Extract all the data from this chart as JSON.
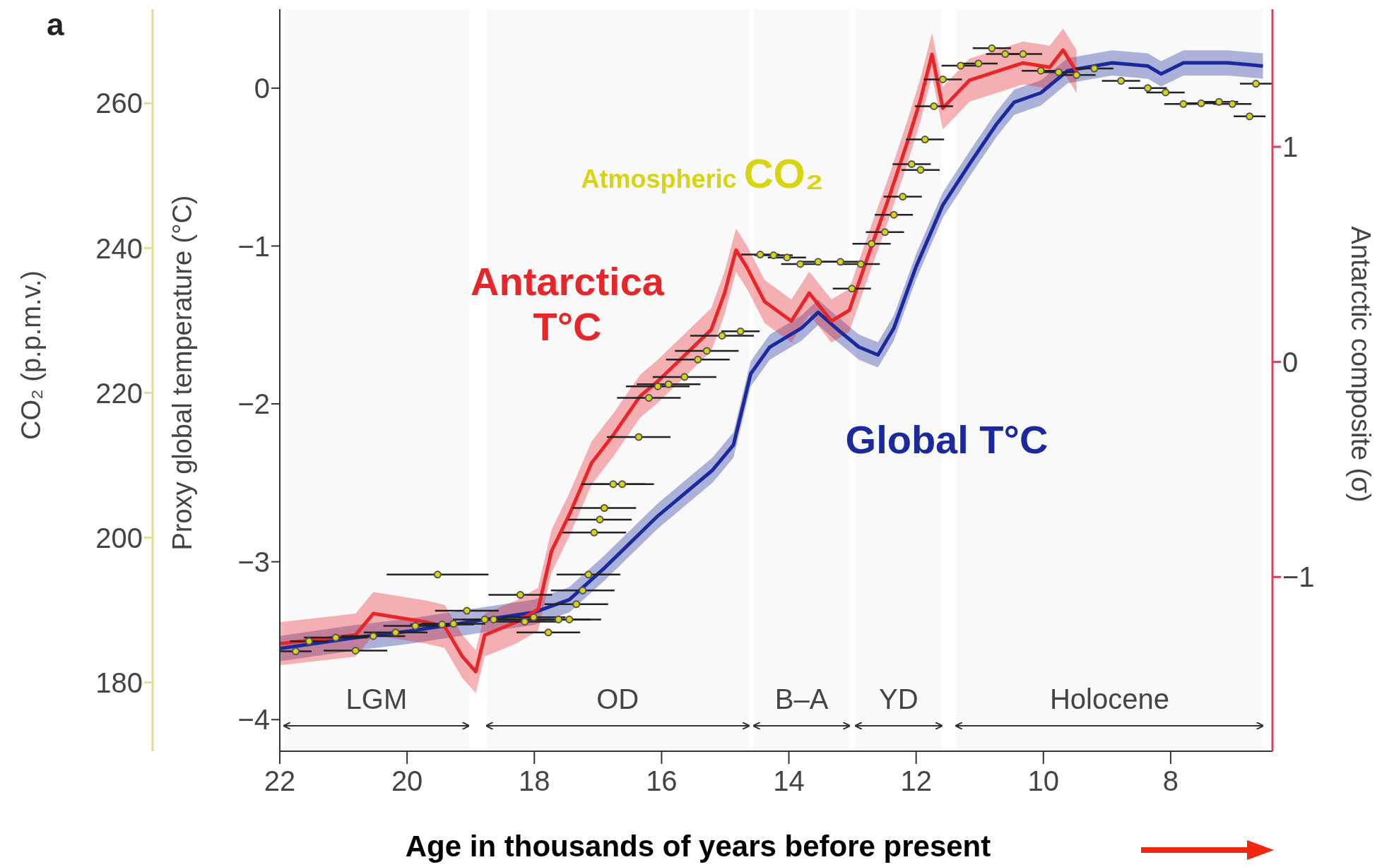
{
  "chart_data": {
    "type": "line",
    "xlabel": "Age in thousands of years before present",
    "ylabel": "Proxy global temperature (°C)",
    "y2label": "Antarctic composite (σ)",
    "y3label": "CO₂ (p.p.m.v.)",
    "xlim": [
      22,
      6.4
    ],
    "xticks": [
      22,
      20,
      18,
      16,
      14,
      12,
      10,
      8
    ],
    "ylim": [
      -4.2,
      0.5
    ],
    "yticks": [
      {
        "value": -4,
        "label": "−4"
      },
      {
        "value": -3,
        "label": "−3"
      },
      {
        "value": -2,
        "label": "−2"
      },
      {
        "value": -1,
        "label": "−1"
      },
      0
    ],
    "y2lim": [
      -1.81,
      1.64
    ],
    "y2ticks": [
      {
        "value": -1,
        "label": "−1"
      },
      0,
      1
    ],
    "y3lim": [
      170.5,
      273
    ],
    "y3ticks": [
      180,
      200,
      220,
      240,
      260
    ],
    "annotations": [
      "a"
    ],
    "bands": [
      {
        "axis": "x",
        "from": 21.93,
        "to": 19.03,
        "label": "LGM"
      },
      {
        "axis": "x",
        "from": 18.75,
        "to": 14.63,
        "label": "OD"
      },
      {
        "axis": "x",
        "from": 14.55,
        "to": 13.05,
        "label": "B–A"
      },
      {
        "axis": "x",
        "from": 12.95,
        "to": 11.6,
        "label": "YD"
      },
      {
        "axis": "x",
        "from": 11.37,
        "to": 6.55,
        "label": "Holocene"
      }
    ],
    "series": [
      {
        "name": "Global T°C",
        "color": "#1a2a9e",
        "marker": "none",
        "x": [
          22,
          20.8,
          19.97,
          19.0,
          18.0,
          17.45,
          16.9,
          16.06,
          15.2,
          14.87,
          14.6,
          14.3,
          13.8,
          13.54,
          13.26,
          12.9,
          12.6,
          12.35,
          12.0,
          11.58,
          11.16,
          10.74,
          10.46,
          10.04,
          9.62,
          8.92,
          8.36,
          8.15,
          7.8,
          7.1,
          6.55
        ],
        "values": [
          -3.55,
          -3.48,
          -3.44,
          -3.38,
          -3.32,
          -3.24,
          -3.04,
          -2.71,
          -2.42,
          -2.26,
          -1.81,
          -1.64,
          -1.52,
          -1.42,
          -1.52,
          -1.64,
          -1.69,
          -1.52,
          -1.13,
          -0.74,
          -0.48,
          -0.23,
          -0.09,
          -0.03,
          0.11,
          0.16,
          0.14,
          0.09,
          0.16,
          0.16,
          0.14
        ],
        "lower": [
          -3.63,
          -3.56,
          -3.52,
          -3.46,
          -3.4,
          -3.32,
          -3.12,
          -2.79,
          -2.5,
          -2.34,
          -1.89,
          -1.72,
          -1.6,
          -1.5,
          -1.6,
          -1.72,
          -1.77,
          -1.6,
          -1.21,
          -0.82,
          -0.56,
          -0.31,
          -0.17,
          -0.11,
          0.03,
          0.08,
          0.06,
          0.01,
          0.08,
          0.08,
          0.06
        ],
        "upper": [
          -3.47,
          -3.4,
          -3.36,
          -3.3,
          -3.24,
          -3.16,
          -2.96,
          -2.63,
          -2.34,
          -2.18,
          -1.73,
          -1.56,
          -1.44,
          -1.34,
          -1.44,
          -1.56,
          -1.61,
          -1.44,
          -1.05,
          -0.66,
          -0.4,
          -0.15,
          -0.01,
          0.05,
          0.19,
          0.24,
          0.22,
          0.17,
          0.24,
          0.24,
          0.22
        ]
      },
      {
        "name": "Antarctica T°C",
        "axis": "y2",
        "color": "#e8262a",
        "marker": "none",
        "x": [
          22,
          20.81,
          20.53,
          19.69,
          19.41,
          19.13,
          18.92,
          18.78,
          18.29,
          17.94,
          17.73,
          17.45,
          17.1,
          16.76,
          16.34,
          16.06,
          15.64,
          15.22,
          15.01,
          14.83,
          14.66,
          14.38,
          13.96,
          13.68,
          13.33,
          13.05,
          12.77,
          12.42,
          12.14,
          11.93,
          11.75,
          11.58,
          11.16,
          10.74,
          10.32,
          9.9,
          9.69,
          9.48
        ],
        "values": [
          -1.31,
          -1.27,
          -1.17,
          -1.21,
          -1.23,
          -1.37,
          -1.44,
          -1.27,
          -1.21,
          -1.15,
          -0.88,
          -0.71,
          -0.47,
          -0.34,
          -0.16,
          -0.09,
          0.03,
          0.15,
          0.32,
          0.52,
          0.44,
          0.28,
          0.19,
          0.32,
          0.19,
          0.24,
          0.48,
          0.77,
          1.02,
          1.22,
          1.43,
          1.18,
          1.31,
          1.35,
          1.39,
          1.37,
          1.45,
          1.35
        ],
        "lower": [
          -1.41,
          -1.37,
          -1.27,
          -1.31,
          -1.33,
          -1.47,
          -1.54,
          -1.37,
          -1.31,
          -1.25,
          -0.98,
          -0.81,
          -0.57,
          -0.44,
          -0.26,
          -0.19,
          -0.07,
          0.05,
          0.22,
          0.42,
          0.34,
          0.18,
          0.09,
          0.22,
          0.09,
          0.14,
          0.38,
          0.67,
          0.92,
          1.12,
          1.33,
          1.08,
          1.21,
          1.25,
          1.29,
          1.27,
          1.35,
          1.25
        ],
        "upper": [
          -1.21,
          -1.17,
          -1.07,
          -1.11,
          -1.13,
          -1.27,
          -1.34,
          -1.17,
          -1.11,
          -1.05,
          -0.78,
          -0.61,
          -0.37,
          -0.24,
          -0.06,
          0.01,
          0.13,
          0.25,
          0.42,
          0.62,
          0.54,
          0.38,
          0.29,
          0.42,
          0.29,
          0.34,
          0.58,
          0.87,
          1.12,
          1.32,
          1.53,
          1.28,
          1.41,
          1.45,
          1.49,
          1.47,
          1.55,
          1.45
        ]
      },
      {
        "name": "Atmospheric CO₂",
        "type": "scatter",
        "axis": "y3",
        "color": "#d8d410",
        "marker": "circle",
        "x": [
          21.75,
          21.54,
          21.12,
          20.81,
          20.53,
          20.18,
          19.87,
          19.52,
          19.45,
          19.27,
          19.06,
          18.78,
          18.64,
          18.22,
          18.15,
          18.01,
          17.78,
          17.62,
          17.45,
          17.34,
          17.24,
          17.15,
          17.06,
          16.97,
          16.9,
          16.76,
          16.62,
          16.36,
          16.2,
          16.06,
          15.89,
          15.64,
          15.43,
          15.29,
          15.05,
          14.76,
          14.45,
          14.24,
          14.03,
          13.82,
          13.54,
          13.19,
          13.01,
          12.87,
          12.7,
          12.49,
          12.35,
          12.21,
          12.07,
          11.93,
          11.86,
          11.72,
          11.58,
          11.3,
          11.02,
          10.81,
          10.6,
          10.32,
          10.04,
          9.76,
          9.48,
          9.2,
          8.78,
          8.36,
          8.08,
          7.8,
          7.52,
          7.24,
          7.03,
          6.76,
          6.66
        ],
        "values": [
          184.3,
          185.7,
          186.2,
          184.4,
          186.4,
          186.9,
          187.8,
          194.9,
          188.0,
          188.1,
          189.9,
          188.7,
          188.7,
          192.1,
          188.4,
          189.0,
          186.9,
          188.7,
          188.7,
          190.8,
          192.7,
          194.9,
          200.7,
          202.5,
          204.1,
          207.4,
          207.4,
          213.9,
          219.3,
          220.9,
          221.2,
          222.2,
          224.6,
          225.8,
          227.9,
          228.5,
          239.1,
          239.0,
          238.7,
          237.8,
          238.1,
          238.1,
          234.4,
          237.8,
          240.6,
          242.2,
          244.6,
          247.1,
          251.6,
          250.8,
          255.0,
          259.6,
          263.3,
          265.2,
          265.5,
          267.6,
          266.8,
          266.8,
          264.5,
          264.3,
          263.9,
          264.8,
          263.1,
          262.1,
          261.5,
          259.9,
          260.0,
          260.2,
          259.9,
          258.2,
          262.7
        ],
        "xerrors": [
          0.25,
          0.3,
          0.5,
          0.5,
          0.5,
          0.5,
          0.5,
          0.8,
          0.5,
          0.5,
          0.5,
          0.5,
          0.5,
          0.5,
          0.5,
          0.5,
          0.5,
          0.5,
          0.5,
          0.5,
          0.5,
          0.5,
          0.5,
          0.5,
          0.5,
          0.5,
          0.5,
          0.5,
          0.5,
          0.5,
          0.5,
          0.5,
          0.5,
          0.5,
          0.5,
          0.3,
          0.3,
          0.3,
          0.3,
          0.3,
          0.3,
          0.3,
          0.3,
          0.3,
          0.3,
          0.3,
          0.3,
          0.3,
          0.3,
          0.3,
          0.3,
          0.3,
          0.3,
          0.3,
          0.3,
          0.3,
          0.3,
          0.3,
          0.3,
          0.3,
          0.3,
          0.3,
          0.3,
          0.3,
          0.3,
          0.3,
          0.3,
          0.3,
          0.3,
          0.25,
          0.25
        ]
      }
    ]
  }
}
